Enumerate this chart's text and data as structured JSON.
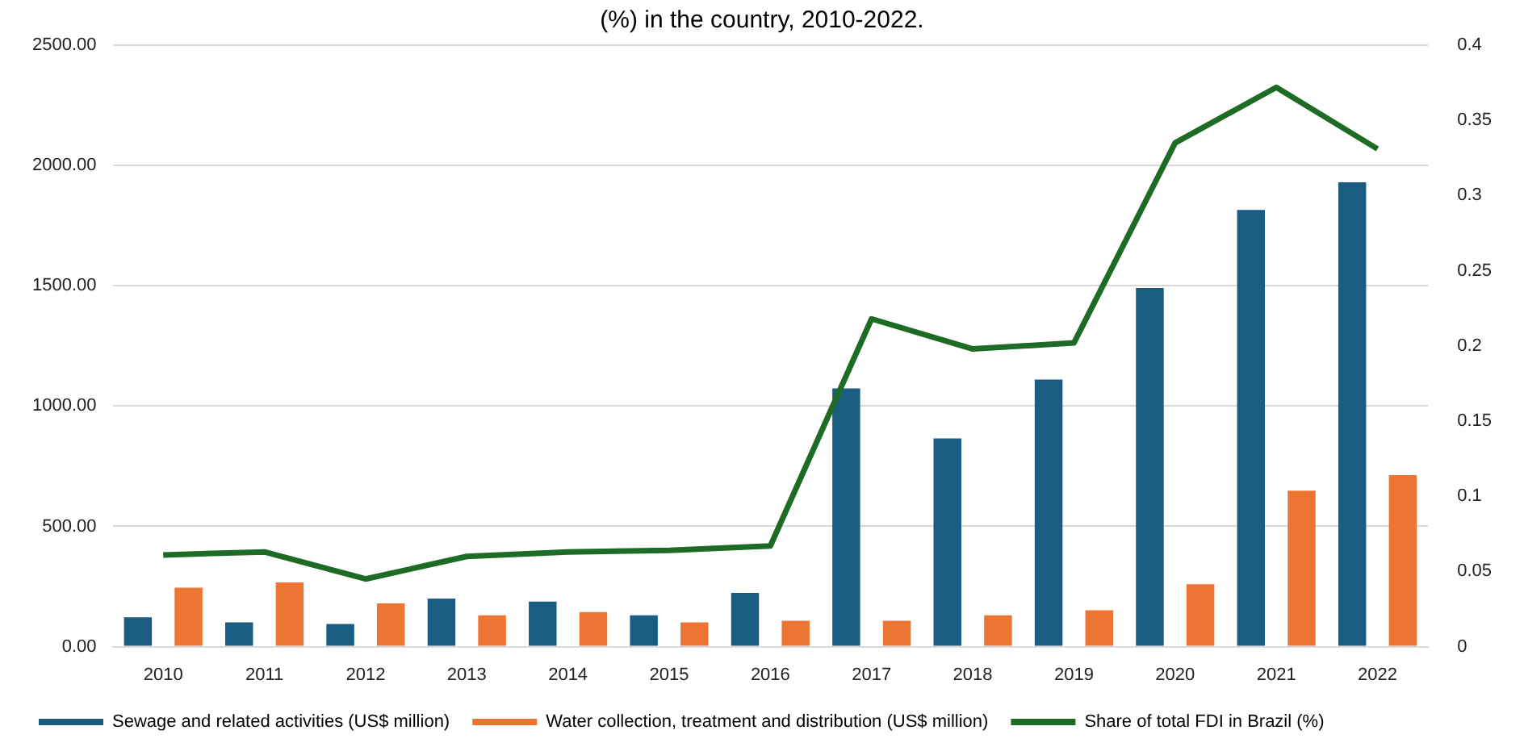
{
  "chart_data": {
    "type": "bar",
    "title": "(%) in the country, 2010-2022.",
    "categories": [
      "2010",
      "2011",
      "2012",
      "2013",
      "2014",
      "2015",
      "2016",
      "2017",
      "2018",
      "2019",
      "2020",
      "2021",
      "2022"
    ],
    "series": [
      {
        "name": "Sewage and related activities (US$ million)",
        "color": "#1a5c82",
        "values": [
          122,
          101,
          94,
          200,
          187,
          130,
          223,
          1073,
          865,
          1110,
          1491,
          1815,
          1930
        ]
      },
      {
        "name": "Water collection, treatment and distribution (US$ million)",
        "color": "#ed7533",
        "values": [
          245,
          267,
          180,
          130,
          144,
          101,
          108,
          108,
          130,
          151,
          259,
          648,
          713
        ]
      },
      {
        "name": "Share of total FDI in Brazil (%)",
        "type": "line",
        "axis": "y2",
        "color": "#1e6b26",
        "marker": "none",
        "values": [
          0.061,
          0.063,
          0.045,
          0.06,
          0.063,
          0.064,
          0.067,
          0.218,
          0.198,
          0.202,
          0.335,
          0.372,
          0.331
        ]
      }
    ],
    "ylim": [
      0,
      2500
    ],
    "yticks": [
      {
        "value": 0,
        "label": "0.00"
      },
      {
        "value": 500,
        "label": "500.00"
      },
      {
        "value": 1000,
        "label": "1000.00"
      },
      {
        "value": 1500,
        "label": "1500.00"
      },
      {
        "value": 2000,
        "label": "2000.00"
      },
      {
        "value": 2500,
        "label": "2500.00"
      }
    ],
    "y2lim": [
      0,
      0.4
    ],
    "y2ticks": [
      0,
      0.05,
      0.1,
      0.15,
      0.2,
      0.25,
      0.3,
      0.35,
      0.4
    ],
    "grid": "y",
    "legend": "bottom"
  }
}
